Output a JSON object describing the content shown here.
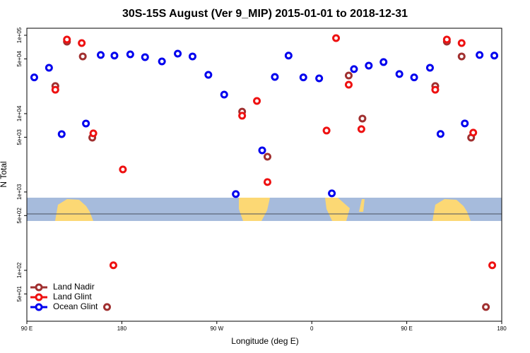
{
  "chart_data": {
    "type": "scatter",
    "title": "30S-15S August (Ver 9_MIP)   2015-01-01 to 2018-12-31",
    "xlabel": "Longitude (deg E)",
    "ylabel": "N Total",
    "xlim": [
      90,
      540
    ],
    "ylim": [
      22.4,
      123000
    ],
    "log_y": true,
    "legend": "lower left",
    "xticks": [
      {
        "value": 90,
        "label": "90 E"
      },
      {
        "value": 180,
        "label": "180"
      },
      {
        "value": 270,
        "label": "90 W"
      },
      {
        "value": 360,
        "label": "0"
      },
      {
        "value": 450,
        "label": "90 E"
      },
      {
        "value": 540,
        "label": "180"
      }
    ],
    "yticks": [
      {
        "value": 50,
        "label": "5e+01"
      },
      {
        "value": 100,
        "label": "1e+02"
      },
      {
        "value": 500,
        "label": "5e+02"
      },
      {
        "value": 1000,
        "label": "1e+03"
      },
      {
        "value": 5000,
        "label": "5e+03"
      },
      {
        "value": 10000,
        "label": "1e+04"
      },
      {
        "value": 50000,
        "label": "5e+04"
      },
      {
        "value": 100000,
        "label": "1e+05"
      }
    ],
    "series": [
      {
        "name": "Land Nadir",
        "color": "#a03030",
        "x": [
          128,
          117,
          143,
          152,
          166,
          294,
          318,
          395,
          408,
          488,
          477,
          502,
          511,
          525
        ],
        "values": [
          83000,
          22500,
          53700,
          4940,
          34,
          10600,
          2820,
          30600,
          8650,
          83000,
          22500,
          53700,
          4940,
          34
        ]
      },
      {
        "name": "Land Glint",
        "color": "#ee1111",
        "x": [
          128,
          117,
          142,
          153,
          181,
          172,
          294,
          308,
          318,
          374,
          383,
          395,
          407,
          488,
          477,
          502,
          513,
          531
        ],
        "values": [
          88300,
          20200,
          79600,
          5600,
          1940,
          116,
          9400,
          14500,
          1340,
          6080,
          92000,
          23400,
          6340,
          88300,
          20200,
          79600,
          5720,
          116
        ]
      },
      {
        "name": "Ocean Glint",
        "color": "#0000ee",
        "x": [
          97,
          111,
          123,
          146,
          160,
          173,
          188,
          202,
          218,
          233,
          247,
          262,
          277,
          288,
          313,
          325,
          338,
          352,
          367,
          379,
          400,
          414,
          428,
          443,
          457,
          472,
          482,
          505,
          519,
          533
        ],
        "values": [
          29000,
          38500,
          5480,
          7480,
          56000,
          55000,
          57100,
          52600,
          46400,
          58300,
          53700,
          31300,
          17500,
          940,
          3400,
          29400,
          55000,
          29000,
          28200,
          960,
          37000,
          41000,
          45500,
          32000,
          29000,
          38500,
          5500,
          7500,
          56000,
          55000
        ]
      }
    ]
  }
}
